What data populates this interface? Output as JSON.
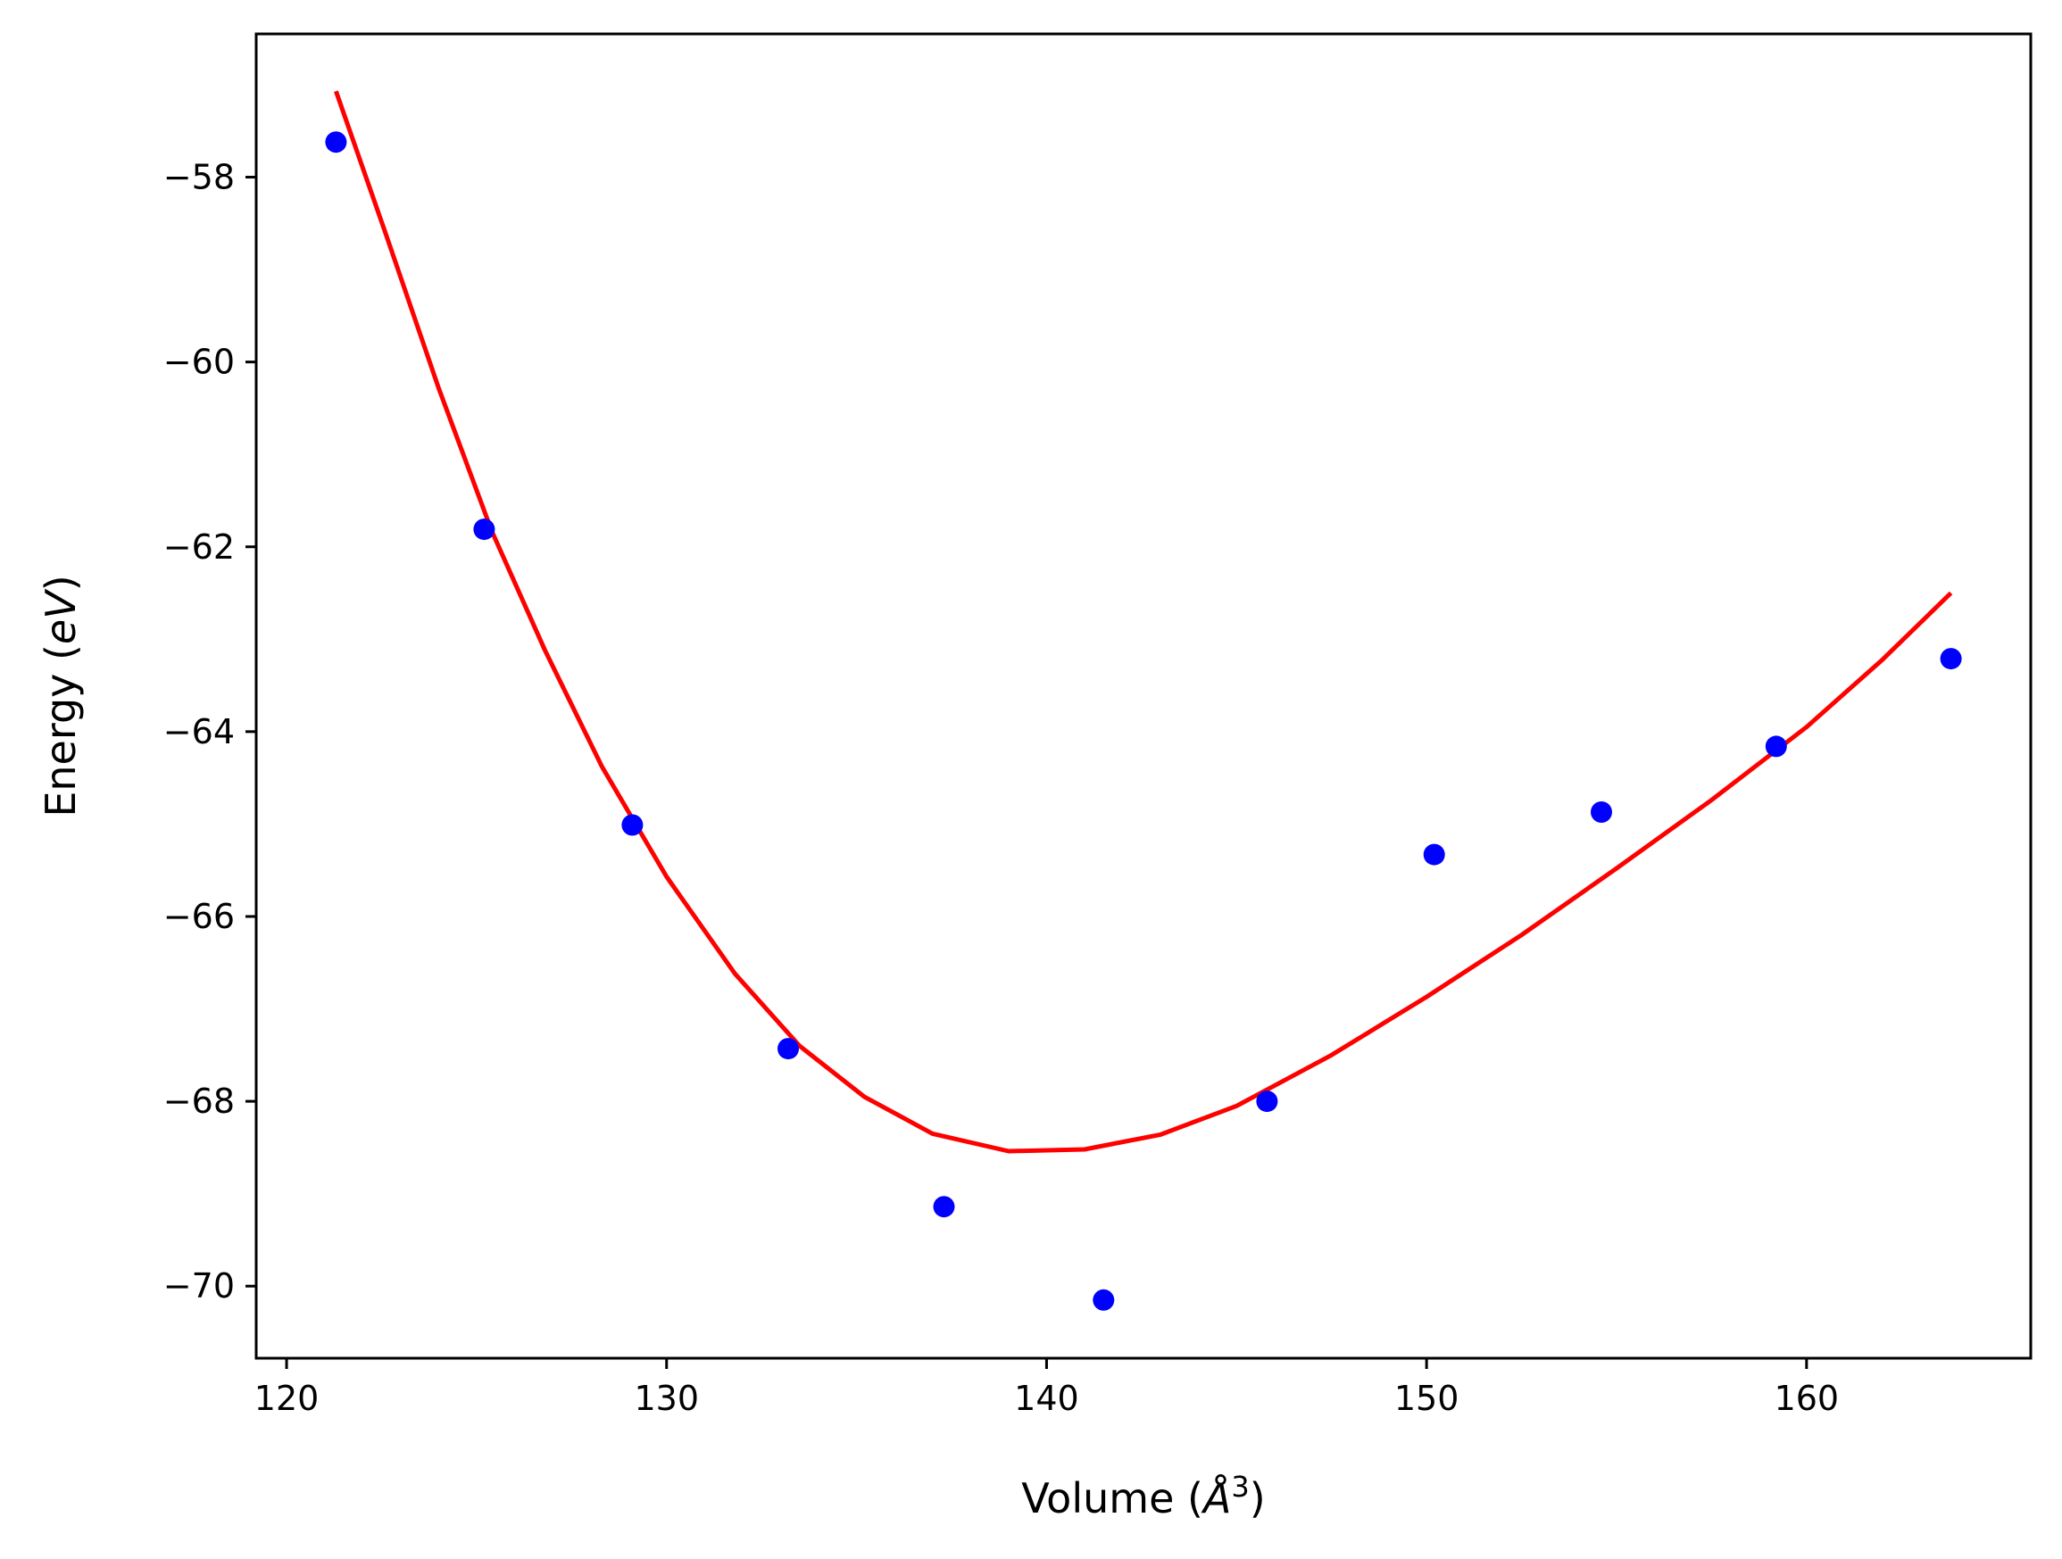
{
  "chart_data": {
    "type": "scatter",
    "xlabel": {
      "prefix": "Volume (",
      "unit": "Å",
      "sup": "3",
      "suffix": ")"
    },
    "ylabel": {
      "prefix": "Energy (",
      "unit": "eV",
      "suffix": ")"
    },
    "xlim": [
      119.2,
      165.9
    ],
    "ylim": [
      -70.78,
      -56.45
    ],
    "xticks": [
      120,
      130,
      140,
      150,
      160
    ],
    "yticks": [
      -58,
      -60,
      -62,
      -64,
      -66,
      -68,
      -70
    ],
    "grid": false,
    "colors": {
      "points": "#0000ff",
      "fit": "#ff0000",
      "axes": "#000000"
    },
    "series": [
      {
        "kind": "points",
        "x": [
          121.3,
          125.2,
          129.1,
          133.2,
          137.3,
          141.5,
          145.8,
          150.2,
          154.6,
          159.2,
          163.8
        ],
        "y": [
          -57.62,
          -61.81,
          -65.01,
          -67.43,
          -69.14,
          -70.15,
          -68.0,
          -65.33,
          -64.87,
          -64.16,
          -63.21
        ]
      },
      {
        "kind": "fit-curve",
        "model": "Birch-Murnaghan fit",
        "x": [
          121.3,
          122.6,
          124.0,
          125.4,
          126.8,
          128.3,
          130.0,
          131.8,
          133.5,
          135.2,
          137.0,
          139.0,
          141.0,
          143.0,
          145.0,
          147.5,
          150.0,
          152.5,
          155.0,
          157.5,
          160.0,
          162.0,
          163.8
        ],
        "y": [
          -57.07,
          -58.6,
          -60.28,
          -61.83,
          -63.12,
          -64.38,
          -65.57,
          -66.62,
          -67.4,
          -67.95,
          -68.35,
          -68.54,
          -68.52,
          -68.36,
          -68.05,
          -67.5,
          -66.87,
          -66.2,
          -65.48,
          -64.74,
          -63.95,
          -63.22,
          -62.5
        ]
      }
    ]
  }
}
